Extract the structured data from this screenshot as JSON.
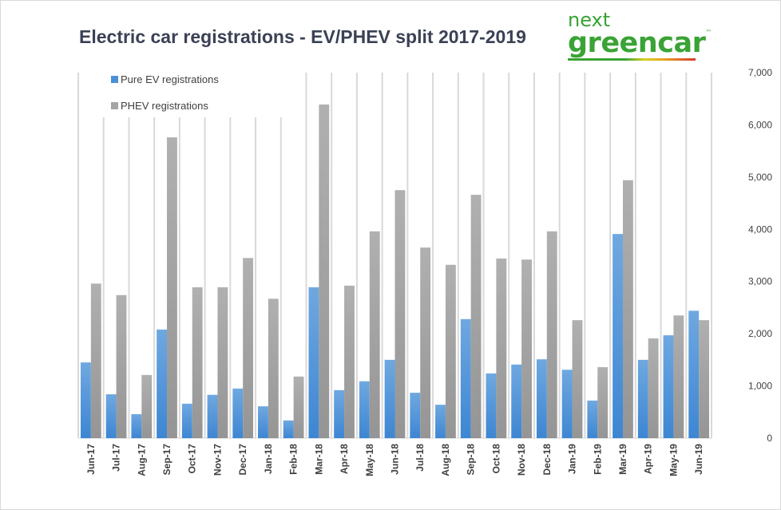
{
  "logo": {
    "line1": "next",
    "line2": "greencar",
    "tm": "™"
  },
  "chart_data": {
    "type": "bar",
    "title": "Electric car registrations - EV/PHEV split 2017-2019",
    "xlabel": "",
    "ylabel": "",
    "ylim": [
      0,
      7000
    ],
    "yticks": [
      "0",
      "1,000",
      "2,000",
      "3,000",
      "4,000",
      "5,000",
      "6,000",
      "7,000"
    ],
    "y_axis_side": "right",
    "grid": "vertical",
    "legend_position": "top-left",
    "categories": [
      "Jun-17",
      "Jul-17",
      "Aug-17",
      "Sep-17",
      "Oct-17",
      "Nov-17",
      "Dec-17",
      "Jan-18",
      "Feb-18",
      "Mar-18",
      "Apr-18",
      "May-18",
      "Jun-18",
      "Jul-18",
      "Aug-18",
      "Sep-18",
      "Oct-18",
      "Nov-18",
      "Dec-18",
      "Jan-19",
      "Feb-19",
      "Mar-19",
      "Apr-19",
      "May-19",
      "Jun-19"
    ],
    "series": [
      {
        "name": "Pure EV registrations",
        "color": "#4a90d9",
        "values": [
          1450,
          840,
          460,
          2080,
          660,
          830,
          950,
          610,
          340,
          2890,
          920,
          1090,
          1500,
          870,
          640,
          2280,
          1240,
          1410,
          1510,
          1310,
          720,
          3910,
          1500,
          1970,
          2440
        ]
      },
      {
        "name": "PHEV registrations",
        "color": "#a5a5a5",
        "values": [
          2960,
          2740,
          1210,
          5760,
          2890,
          2890,
          3450,
          2670,
          1180,
          6390,
          2920,
          3960,
          4750,
          3650,
          3320,
          4660,
          3440,
          3420,
          3960,
          2260,
          1360,
          4940,
          1910,
          2350,
          2260
        ]
      }
    ]
  }
}
